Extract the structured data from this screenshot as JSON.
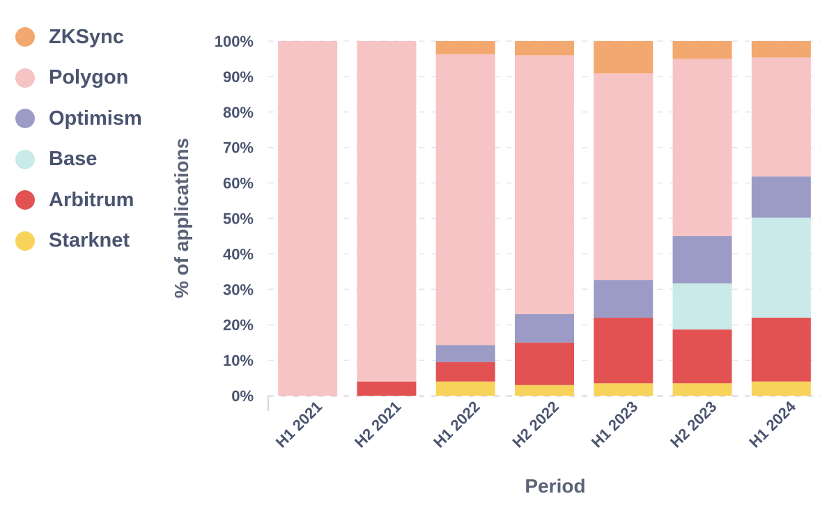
{
  "chart_data": {
    "type": "bar",
    "stacked": true,
    "xlabel": "Period",
    "ylabel": "% of applications",
    "ylim": [
      0,
      100
    ],
    "y_ticks": [
      "0%",
      "10%",
      "20%",
      "30%",
      "40%",
      "50%",
      "60%",
      "70%",
      "80%",
      "90%",
      "100%"
    ],
    "categories": [
      "H1 2021",
      "H2 2021",
      "H1 2022",
      "H2 2022",
      "H1 2023",
      "H2 2023",
      "H1 2024"
    ],
    "series": [
      {
        "name": "Starknet",
        "color": "#f7d35c",
        "values": [
          0,
          0,
          4,
          3,
          3.5,
          3.5,
          4
        ]
      },
      {
        "name": "Arbitrum",
        "color": "#e35252",
        "values": [
          0,
          4,
          5.5,
          12,
          18.5,
          15.2,
          18
        ]
      },
      {
        "name": "Base",
        "color": "#c9eae8",
        "values": [
          0,
          0,
          0,
          0,
          0,
          13,
          28.2
        ]
      },
      {
        "name": "Optimism",
        "color": "#9b9bc6",
        "values": [
          0,
          0,
          4.8,
          8,
          10.6,
          13.3,
          11.6
        ]
      },
      {
        "name": "Polygon",
        "color": "#f6c4c4",
        "values": [
          100,
          96,
          82,
          73,
          58.3,
          50,
          33.6
        ]
      },
      {
        "name": "ZKSync",
        "color": "#f2a86e",
        "values": [
          0,
          0,
          3.7,
          4,
          9.1,
          5,
          4.6
        ]
      }
    ],
    "legend": [
      "ZKSync",
      "Polygon",
      "Optimism",
      "Base",
      "Arbitrum",
      "Starknet"
    ],
    "legend_position": "top-left",
    "grid": true
  }
}
